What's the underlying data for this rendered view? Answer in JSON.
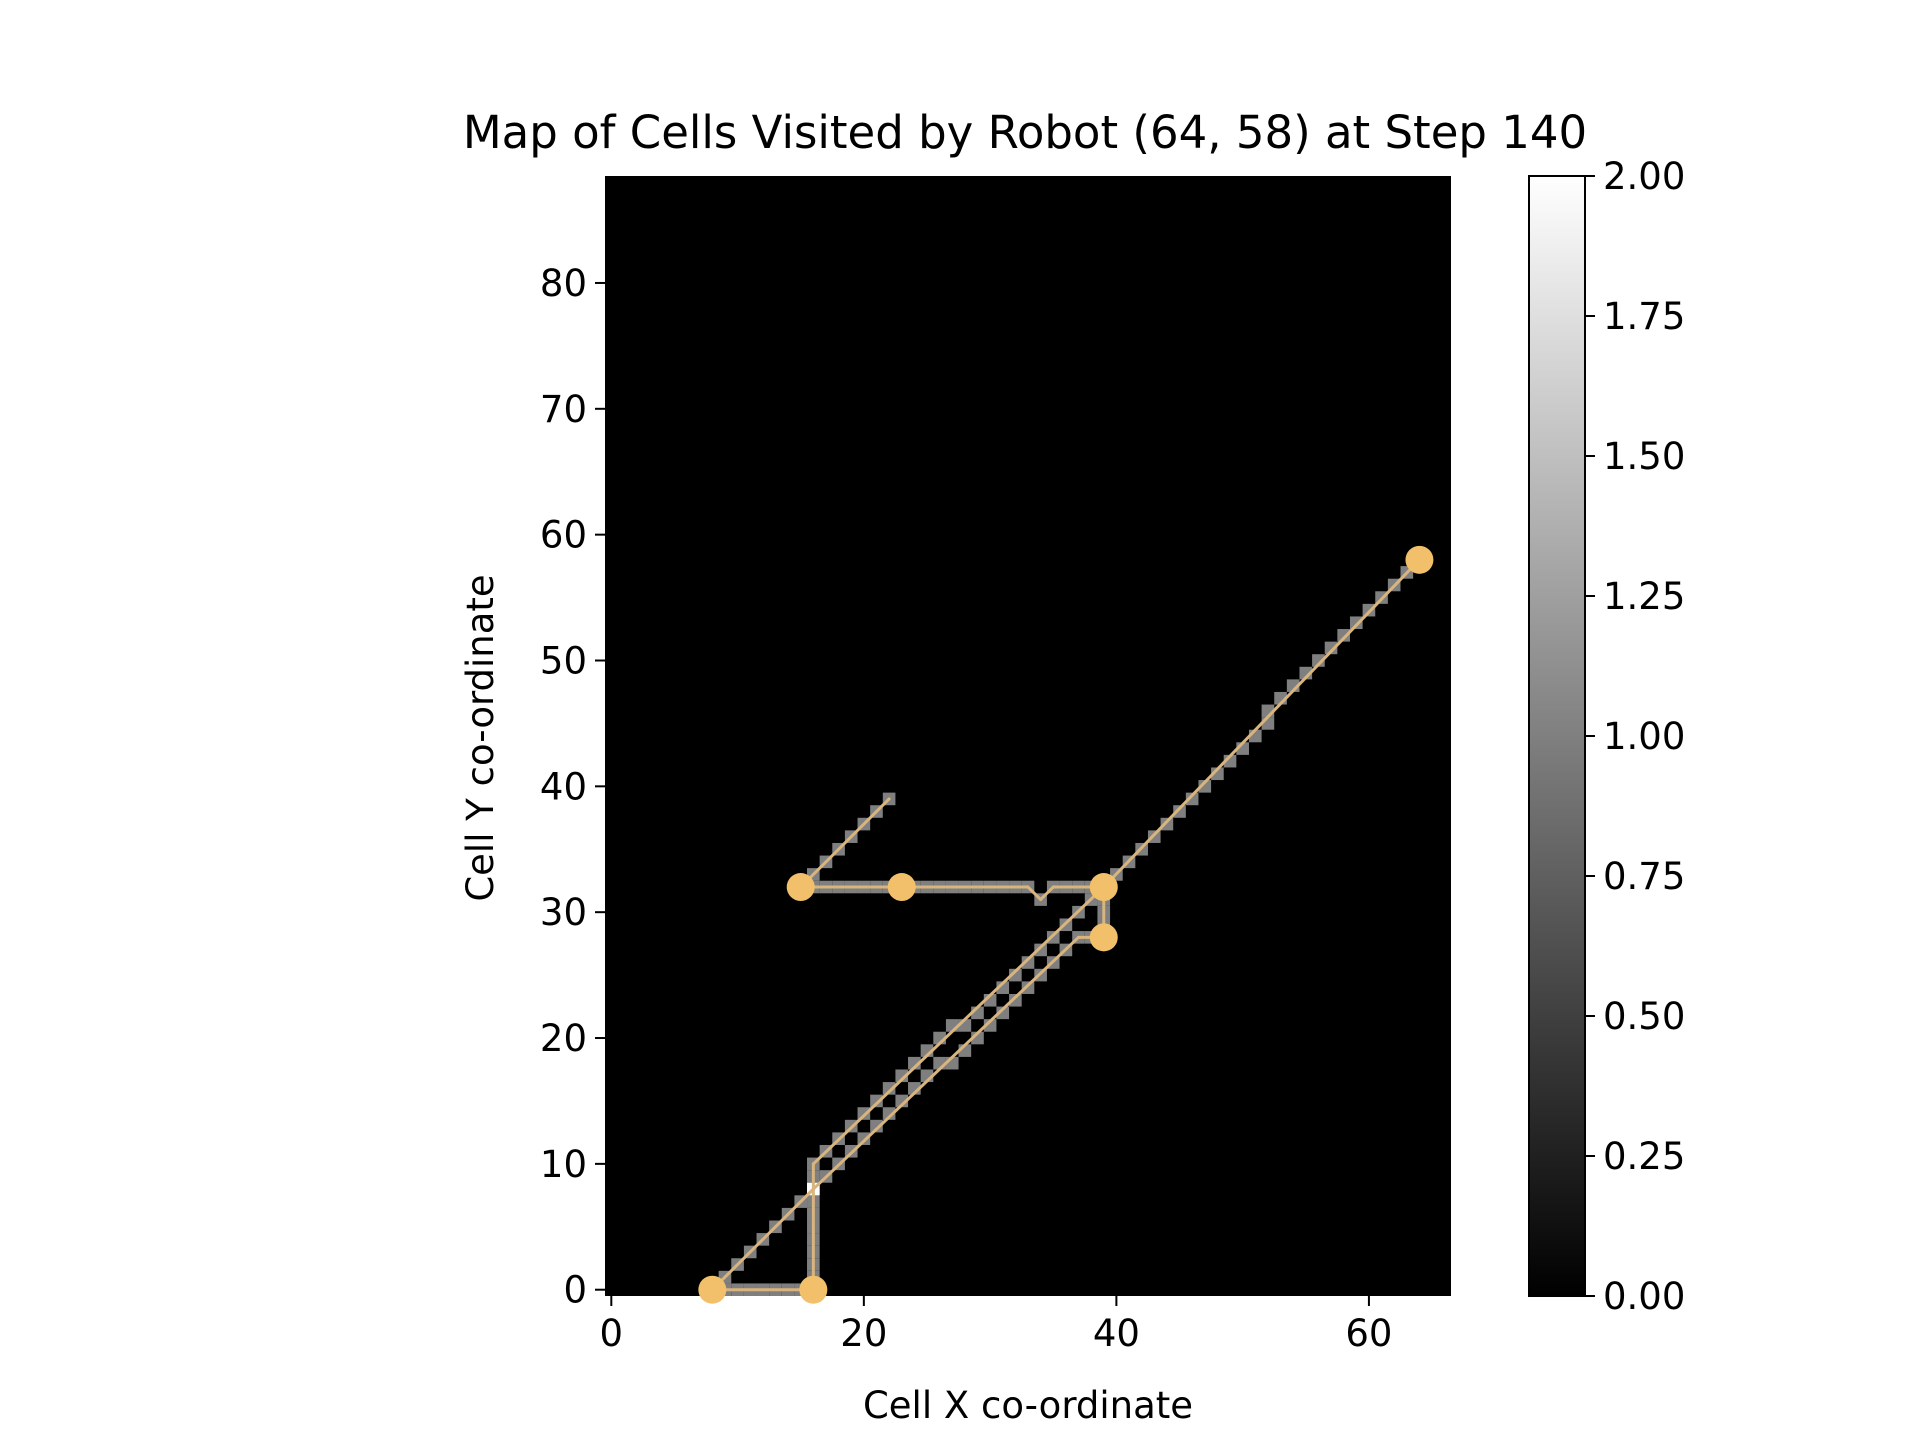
{
  "chart_data": {
    "type": "heatmap",
    "title": "Map of Cells Visited by Robot (64, 58) at Step 140",
    "xlabel": "Cell X co-ordinate",
    "ylabel": "Cell Y co-ordinate",
    "xlim": [
      -0.5,
      66.5
    ],
    "ylim": [
      -0.5,
      88.5
    ],
    "x_ticks": [
      0,
      20,
      40,
      60
    ],
    "y_ticks": [
      0,
      10,
      20,
      30,
      40,
      50,
      60,
      70,
      80
    ],
    "grid": false,
    "colormap": "gray",
    "background_color": "#000000",
    "colorbar": {
      "min": 0.0,
      "max": 2.0,
      "ticks": [
        "0.00",
        "0.25",
        "0.50",
        "0.75",
        "1.00",
        "1.25",
        "1.50",
        "1.75",
        "2.00"
      ]
    },
    "path_color": "#d8b47e",
    "visit_color": "#7f7f7f",
    "revisit_color": "#ffffff",
    "waypoint_color": "#f2c06a",
    "path_segments": [
      [
        [
          8,
          0
        ],
        [
          16,
          0
        ]
      ],
      [
        [
          16,
          0
        ],
        [
          16,
          10
        ]
      ],
      [
        [
          16,
          10
        ],
        [
          39,
          32
        ]
      ],
      [
        [
          39,
          32
        ],
        [
          39,
          28
        ]
      ],
      [
        [
          39,
          28
        ],
        [
          37,
          28
        ]
      ],
      [
        [
          37,
          28
        ],
        [
          16,
          8
        ]
      ],
      [
        [
          16,
          8
        ],
        [
          8,
          0
        ]
      ],
      [
        [
          8,
          0
        ],
        [
          8,
          0
        ]
      ],
      [
        [
          15,
          32
        ],
        [
          22,
          39
        ]
      ],
      [
        [
          15,
          32
        ],
        [
          33,
          32
        ]
      ],
      [
        [
          33,
          32
        ],
        [
          34,
          31
        ]
      ],
      [
        [
          34,
          31
        ],
        [
          35,
          32
        ]
      ],
      [
        [
          35,
          32
        ],
        [
          39,
          32
        ]
      ],
      [
        [
          39,
          32
        ],
        [
          64,
          58
        ]
      ]
    ],
    "waypoints": [
      {
        "x": 8,
        "y": 0
      },
      {
        "x": 16,
        "y": 0
      },
      {
        "x": 15,
        "y": 32
      },
      {
        "x": 23,
        "y": 32
      },
      {
        "x": 39,
        "y": 32
      },
      {
        "x": 39,
        "y": 28
      },
      {
        "x": 64,
        "y": 58
      }
    ],
    "revisited_cells": [
      {
        "x": 16,
        "y": 8,
        "value": 2
      }
    ]
  }
}
